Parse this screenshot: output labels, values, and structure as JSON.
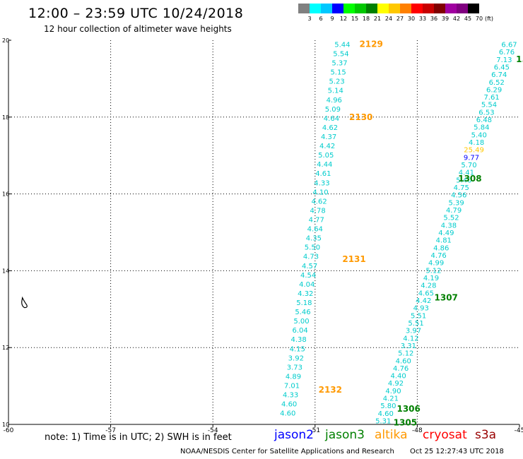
{
  "header": {
    "title": "12:00 – 23:59 UTC 10/24/2018",
    "subtitle": "12 hour collection of altimeter wave heights"
  },
  "colorbar": {
    "unit": "(ft)",
    "items": [
      {
        "color": "#808080",
        "label": "3"
      },
      {
        "color": "#00ffff",
        "label": "6"
      },
      {
        "color": "#00c8ff",
        "label": "9"
      },
      {
        "color": "#0000ff",
        "label": "12"
      },
      {
        "color": "#00ff00",
        "label": "15"
      },
      {
        "color": "#00c800",
        "label": "18"
      },
      {
        "color": "#008000",
        "label": "21"
      },
      {
        "color": "#ffff00",
        "label": "24"
      },
      {
        "color": "#ffc800",
        "label": "27"
      },
      {
        "color": "#ff8000",
        "label": "30"
      },
      {
        "color": "#ff0000",
        "label": "33"
      },
      {
        "color": "#c80000",
        "label": "36"
      },
      {
        "color": "#800000",
        "label": "39"
      },
      {
        "color": "#a000a0",
        "label": "42"
      },
      {
        "color": "#800080",
        "label": "45"
      },
      {
        "color": "#000000",
        "label": "70"
      }
    ]
  },
  "chart_data": {
    "type": "scatter",
    "xlim": [
      -60,
      -45
    ],
    "ylim": [
      10,
      20
    ],
    "xticks": [
      "-60",
      "-57",
      "-54",
      "-51",
      "-48",
      "-45"
    ],
    "yticks": [
      "10",
      "12",
      "14",
      "16",
      "18",
      "20"
    ],
    "grid": true,
    "pass_colors": {
      "altika": "#ff9900",
      "jason3": "#008000"
    },
    "passes": [
      {
        "satellite": "altika",
        "label": "2129",
        "lon": -49.7,
        "lat": 19.9
      },
      {
        "satellite": "altika",
        "label": "2130",
        "lon": -50.0,
        "lat": 18.0
      },
      {
        "satellite": "altika",
        "label": "2131",
        "lon": -50.2,
        "lat": 14.3
      },
      {
        "satellite": "altika",
        "label": "2132",
        "lon": -50.9,
        "lat": 10.9
      },
      {
        "satellite": "jason3",
        "label": "1308",
        "lon": -46.8,
        "lat": 16.4
      },
      {
        "satellite": "jason3",
        "label": "1307",
        "lon": -47.5,
        "lat": 13.3
      },
      {
        "satellite": "jason3",
        "label": "1306",
        "lon": -48.6,
        "lat": 10.4
      },
      {
        "satellite": "jason3",
        "label": "1305",
        "lon": -48.7,
        "lat": 10.05
      },
      {
        "satellite": "jason3",
        "label": "1.",
        "lon": -45.1,
        "lat": 19.5
      }
    ],
    "tracks": [
      {
        "name": "track-west",
        "lon_start": -50.2,
        "lat_start": 19.9,
        "lon_end": -51.8,
        "lat_end": 10.3,
        "values": [
          "5.44",
          "5.54",
          "5.37",
          "5.15",
          "5.23",
          "5.14",
          "4.96",
          "5.09",
          "4.64",
          "4.62",
          "4.37",
          "4.42",
          "5.05",
          "4.44",
          "4.61",
          "4.33",
          "4.10",
          "4.62",
          "4.78",
          "4.77",
          "4.64",
          "4.35",
          "5.50",
          "4.73",
          "4.57",
          "4.54",
          "4.04",
          "4.32",
          "5.18",
          "5.46",
          "5.00",
          "6.04",
          "4.38",
          "4.15",
          "3.92",
          "3.73",
          "4.89",
          "7.01",
          "4.33",
          "4.60",
          "4.60"
        ]
      },
      {
        "name": "track-east",
        "lon_start": -45.3,
        "lat_start": 19.9,
        "lon_end": -49.0,
        "lat_end": 10.1,
        "values": [
          "6.67",
          "6.76",
          "7.13",
          "6.45",
          "6.74",
          "6.52",
          "6.29",
          "7.61",
          "5.54",
          "6.53",
          "6.48",
          "5.84",
          "5.40",
          "4.18",
          "25.49",
          "9.77",
          "5.70",
          "4.41",
          "5.40",
          "4.75",
          "4.56",
          "5.39",
          "4.79",
          "5.52",
          "4.38",
          "4.49",
          "4.81",
          "4.86",
          "4.76",
          "4.99",
          "5.12",
          "4.19",
          "4.28",
          "4.65",
          "4.42",
          "4.93",
          "5.51",
          "5.51",
          "3.97",
          "4.12",
          "3.31",
          "5.12",
          "4.60",
          "4.76",
          "4.40",
          "4.92",
          "4.90",
          "4.21",
          "5.80",
          "4.60",
          "5.31"
        ],
        "highlight": {
          "25.49": "#ffc800",
          "9.77": "#0000ff"
        }
      }
    ],
    "island": {
      "lon": -59.55,
      "lat": 13.15
    }
  },
  "legend": {
    "note": "note: 1) Time is in UTC; 2) SWH is in feet",
    "satellites": [
      {
        "name": "jason2",
        "color": "#0000ff"
      },
      {
        "name": "jason3",
        "color": "#008000"
      },
      {
        "name": "altika",
        "color": "#ff9900"
      },
      {
        "name": "cryosat",
        "color": "#ff0000"
      },
      {
        "name": "s3a",
        "color": "#990000"
      }
    ]
  },
  "footer": {
    "credit": "NOAA/NESDIS Center for Satellite Applications and Research",
    "timestamp": "Oct 25 12:27:43 UTC 2018"
  }
}
